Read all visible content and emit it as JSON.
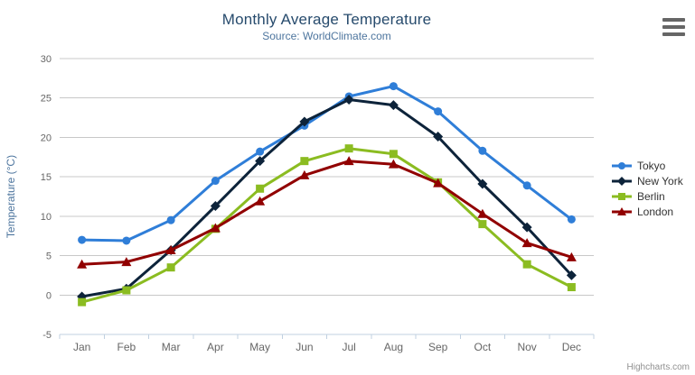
{
  "header": {
    "title": "Monthly Average Temperature",
    "subtitle": "Source: WorldClimate.com"
  },
  "icons": {
    "context_menu": "hamburger-menu-icon"
  },
  "credits": "Highcharts.com",
  "chart_data": {
    "type": "line",
    "title": "Monthly Average Temperature",
    "subtitle": "Source: WorldClimate.com",
    "categories": [
      "Jan",
      "Feb",
      "Mar",
      "Apr",
      "May",
      "Jun",
      "Jul",
      "Aug",
      "Sep",
      "Oct",
      "Nov",
      "Dec"
    ],
    "series": [
      {
        "name": "Tokyo",
        "color": "#2f7ed8",
        "marker": "circle",
        "values": [
          7.0,
          6.9,
          9.5,
          14.5,
          18.2,
          21.5,
          25.2,
          26.5,
          23.3,
          18.3,
          13.9,
          9.6
        ]
      },
      {
        "name": "New York",
        "color": "#0d233a",
        "marker": "diamond",
        "values": [
          -0.2,
          0.8,
          5.7,
          11.3,
          17.0,
          22.0,
          24.8,
          24.1,
          20.1,
          14.1,
          8.6,
          2.5
        ]
      },
      {
        "name": "Berlin",
        "color": "#8bbc21",
        "marker": "square",
        "values": [
          -0.9,
          0.6,
          3.5,
          8.4,
          13.5,
          17.0,
          18.6,
          17.9,
          14.3,
          9.0,
          3.9,
          1.0
        ]
      },
      {
        "name": "London",
        "color": "#910000",
        "marker": "triangle",
        "values": [
          3.9,
          4.2,
          5.7,
          8.5,
          11.9,
          15.2,
          17.0,
          16.6,
          14.2,
          10.3,
          6.6,
          4.8
        ]
      }
    ],
    "xlabel": "",
    "ylabel": "Temperature (°C)",
    "ylim": [
      -5,
      30
    ],
    "yticks": [
      -5,
      0,
      5,
      10,
      15,
      20,
      25,
      30
    ],
    "grid": true,
    "legend_position": "right",
    "style": {
      "grid_color": "#c8c8c8",
      "axis_line_color": "#c0d0e0",
      "tick_label_color": "#666666",
      "axis_title_color": "#4d759e",
      "title_color": "#274b6d",
      "subtitle_color": "#4d759e",
      "legend_text_color": "#333333",
      "credits_color": "#909090"
    }
  }
}
